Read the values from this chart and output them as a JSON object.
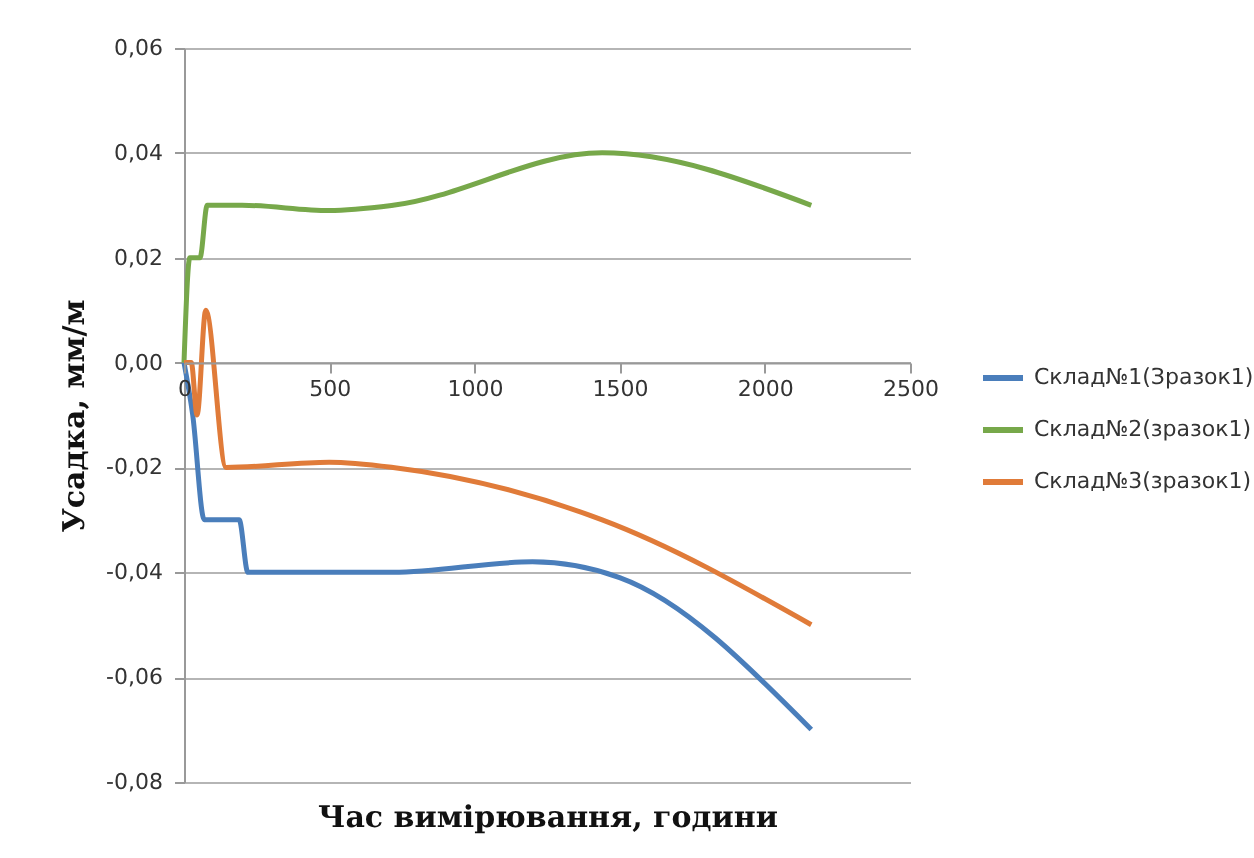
{
  "chart_data": {
    "type": "line",
    "xlabel": "Час вимірювання, години",
    "ylabel": "Усадка, мм/м",
    "xlim": [
      0,
      2500
    ],
    "xticks": [
      0,
      500,
      1000,
      1500,
      2000,
      2500
    ],
    "ylim": [
      -0.08,
      0.06
    ],
    "yticks": [
      {
        "value": -0.08,
        "label": "-0,08"
      },
      {
        "value": -0.06,
        "label": "-0,06"
      },
      {
        "value": -0.04,
        "label": "-0,04"
      },
      {
        "value": -0.02,
        "label": "-0,02"
      },
      {
        "value": 0,
        "label": "0,00"
      },
      {
        "value": 0.02,
        "label": "0,02"
      },
      {
        "value": 0.04,
        "label": "0,04"
      },
      {
        "value": 0.06,
        "label": "0,06"
      }
    ],
    "grid": "y",
    "legend": "right",
    "marker": "none",
    "line_style": "solid",
    "series": [
      {
        "name": "Склад№1(Зразок1)",
        "color": "#4a7ebb",
        "x": [
          0,
          30,
          70,
          190,
          220,
          720,
          1200,
          1500,
          2160
        ],
        "values": [
          0,
          -0.01,
          -0.03,
          -0.03,
          -0.04,
          -0.04,
          -0.038,
          -0.041,
          -0.07
        ]
      },
      {
        "name": "Склад№2(зразок1)",
        "color": "#77a84a",
        "x": [
          0,
          20,
          55,
          80,
          200,
          500,
          720,
          1440,
          2160
        ],
        "values": [
          0,
          0.02,
          0.02,
          0.03,
          0.03,
          0.029,
          0.03,
          0.04,
          0.03
        ]
      },
      {
        "name": "Склад№3(зразок1)",
        "color": "#e07b39",
        "x": [
          0,
          25,
          45,
          75,
          145,
          500,
          720,
          1440,
          2160
        ],
        "values": [
          0,
          0,
          -0.01,
          0.01,
          -0.02,
          -0.019,
          -0.02,
          -0.03,
          -0.05
        ]
      }
    ]
  }
}
